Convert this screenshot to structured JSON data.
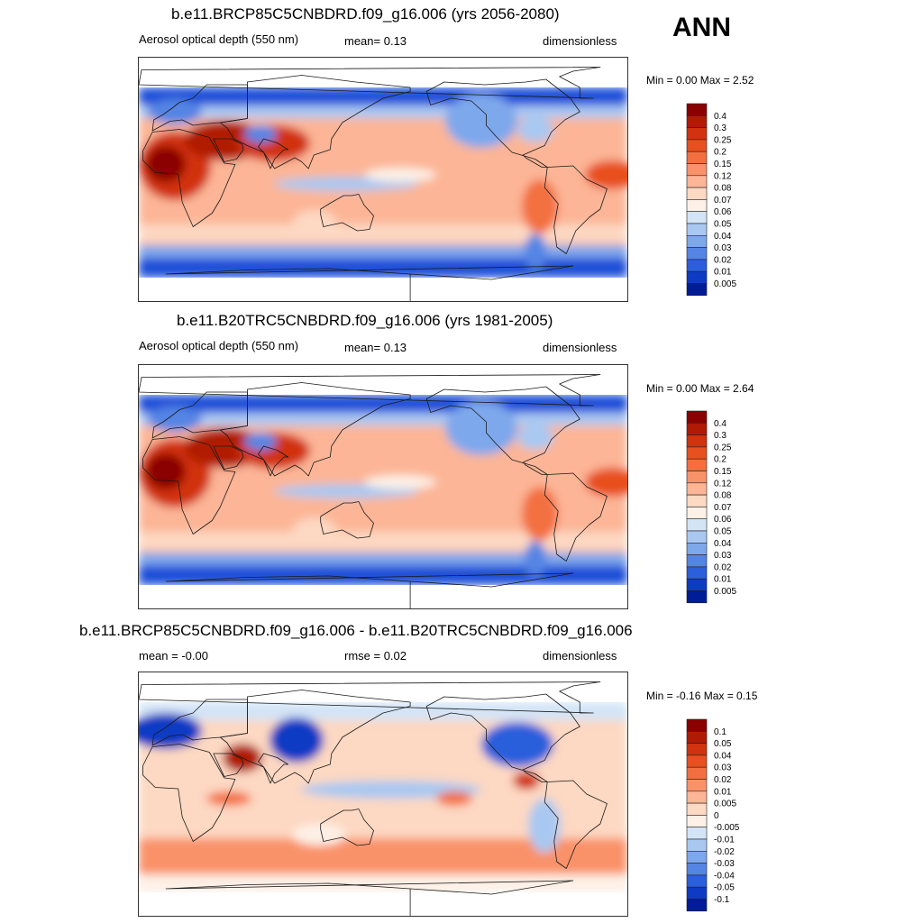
{
  "season": "ANN",
  "panels": [
    {
      "title": "b.e11.BRCP85C5CNBDRD.f09_g16.006 (yrs 2056-2080)",
      "left_text": "Aerosol optical depth (550 nm)",
      "mid_text": "mean=   0.13",
      "right_text": "dimensionless",
      "minmax": "Min =    0.00 Max =    2.52",
      "colorbar": {
        "labels": [
          "0.4",
          "0.3",
          "0.25",
          "0.2",
          "0.15",
          "0.12",
          "0.08",
          "0.07",
          "0.06",
          "0.05",
          "0.04",
          "0.03",
          "0.02",
          "0.01",
          "0.005"
        ],
        "colors": [
          "#8b0000",
          "#b11a05",
          "#d1320f",
          "#e8501f",
          "#f36f3f",
          "#f99269",
          "#fcb596",
          "#fdd8c2",
          "#fdf0e6",
          "#d3e4f7",
          "#a9c8f1",
          "#7ea8ec",
          "#5485e4",
          "#2b5fdc",
          "#0d3bc4",
          "#001c96"
        ]
      }
    },
    {
      "title": "b.e11.B20TRC5CNBDRD.f09_g16.006 (yrs 1981-2005)",
      "left_text": "Aerosol optical depth (550 nm)",
      "mid_text": "mean=   0.13",
      "right_text": "dimensionless",
      "minmax": "Min =    0.00 Max =    2.64",
      "colorbar": {
        "labels": [
          "0.4",
          "0.3",
          "0.25",
          "0.2",
          "0.15",
          "0.12",
          "0.08",
          "0.07",
          "0.06",
          "0.05",
          "0.04",
          "0.03",
          "0.02",
          "0.01",
          "0.005"
        ],
        "colors": [
          "#8b0000",
          "#b11a05",
          "#d1320f",
          "#e8501f",
          "#f36f3f",
          "#f99269",
          "#fcb596",
          "#fdd8c2",
          "#fdf0e6",
          "#d3e4f7",
          "#a9c8f1",
          "#7ea8ec",
          "#5485e4",
          "#2b5fdc",
          "#0d3bc4",
          "#001c96"
        ]
      }
    },
    {
      "title": "b.e11.BRCP85C5CNBDRD.f09_g16.006 - b.e11.B20TRC5CNBDRD.f09_g16.006",
      "left_text": "mean =  -0.00",
      "mid_text": "rmse =   0.02",
      "right_text": "dimensionless",
      "minmax": "Min =  -0.16 Max =    0.15",
      "colorbar": {
        "labels": [
          "0.1",
          "0.05",
          "0.04",
          "0.03",
          "0.02",
          "0.01",
          "0.005",
          "0",
          "-0.005",
          "-0.01",
          "-0.02",
          "-0.03",
          "-0.04",
          "-0.05",
          "-0.1"
        ],
        "colors": [
          "#8b0000",
          "#b11a05",
          "#d1320f",
          "#e8501f",
          "#f36f3f",
          "#f99269",
          "#fcb596",
          "#fdd8c2",
          "#fdf0e6",
          "#d3e4f7",
          "#a9c8f1",
          "#7ea8ec",
          "#5485e4",
          "#2b5fdc",
          "#0d3bc4",
          "#001c96"
        ]
      }
    }
  ]
}
